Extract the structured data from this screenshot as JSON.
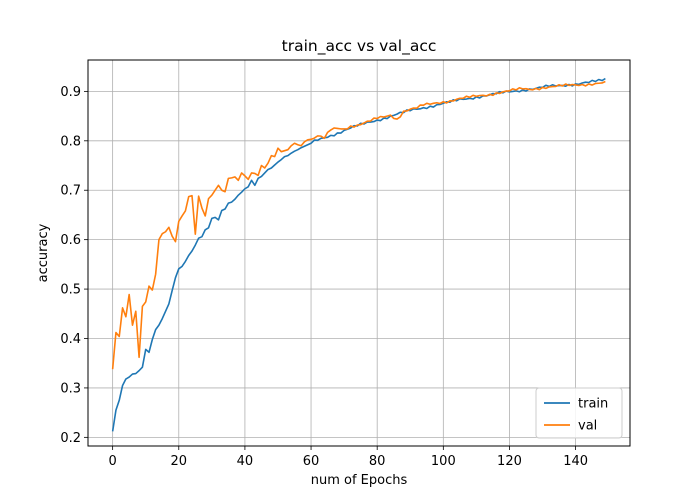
{
  "chart_data": {
    "type": "line",
    "title": "train_acc vs val_acc",
    "xlabel": "num of Epochs",
    "ylabel": "accuracy",
    "xlim": [
      -7.45,
      156.45
    ],
    "ylim": [
      0.1825,
      0.9635
    ],
    "xticks": [
      0,
      20,
      40,
      60,
      80,
      100,
      120,
      140
    ],
    "yticks": [
      0.2,
      0.3,
      0.4,
      0.5,
      0.6,
      0.7,
      0.8,
      0.9
    ],
    "grid": true,
    "legend_position": "lower-right",
    "x_range": [
      0,
      149
    ],
    "series": [
      {
        "name": "train",
        "color": "#1f77b4",
        "keypoints": [
          [
            0,
            0.212
          ],
          [
            1,
            0.255
          ],
          [
            2,
            0.275
          ],
          [
            3,
            0.305
          ],
          [
            4,
            0.318
          ],
          [
            5,
            0.322
          ],
          [
            6,
            0.328
          ],
          [
            7,
            0.329
          ],
          [
            8,
            0.335
          ],
          [
            9,
            0.342
          ],
          [
            10,
            0.378
          ],
          [
            11,
            0.372
          ],
          [
            12,
            0.398
          ],
          [
            13,
            0.418
          ],
          [
            14,
            0.427
          ],
          [
            15,
            0.44
          ],
          [
            16,
            0.455
          ],
          [
            17,
            0.47
          ],
          [
            18,
            0.497
          ],
          [
            19,
            0.523
          ],
          [
            20,
            0.541
          ],
          [
            21,
            0.546
          ],
          [
            22,
            0.556
          ],
          [
            23,
            0.568
          ],
          [
            24,
            0.577
          ],
          [
            25,
            0.589
          ],
          [
            26,
            0.603
          ],
          [
            27,
            0.606
          ],
          [
            28,
            0.62
          ],
          [
            29,
            0.624
          ],
          [
            30,
            0.643
          ],
          [
            31,
            0.645
          ],
          [
            32,
            0.64
          ],
          [
            33,
            0.659
          ],
          [
            34,
            0.662
          ],
          [
            35,
            0.674
          ],
          [
            36,
            0.676
          ],
          [
            37,
            0.682
          ],
          [
            38,
            0.69
          ],
          [
            39,
            0.696
          ],
          [
            40,
            0.703
          ],
          [
            41,
            0.707
          ],
          [
            42,
            0.72
          ],
          [
            43,
            0.71
          ],
          [
            44,
            0.724
          ],
          [
            45,
            0.728
          ],
          [
            46,
            0.735
          ],
          [
            47,
            0.742
          ],
          [
            48,
            0.745
          ],
          [
            49,
            0.751
          ],
          [
            50,
            0.757
          ],
          [
            51,
            0.762
          ],
          [
            52,
            0.768
          ],
          [
            53,
            0.77
          ],
          [
            54,
            0.775
          ],
          [
            55,
            0.779
          ],
          [
            56,
            0.782
          ],
          [
            57,
            0.786
          ],
          [
            58,
            0.789
          ],
          [
            59,
            0.792
          ],
          [
            60,
            0.795
          ],
          [
            62,
            0.801
          ],
          [
            64,
            0.806
          ],
          [
            66,
            0.811
          ],
          [
            68,
            0.816
          ],
          [
            70,
            0.821
          ],
          [
            72,
            0.826
          ],
          [
            74,
            0.83
          ],
          [
            76,
            0.834
          ],
          [
            78,
            0.838
          ],
          [
            80,
            0.842
          ],
          [
            82,
            0.846
          ],
          [
            84,
            0.85
          ],
          [
            86,
            0.854
          ],
          [
            88,
            0.857
          ],
          [
            90,
            0.861
          ],
          [
            92,
            0.864
          ],
          [
            94,
            0.867
          ],
          [
            96,
            0.87
          ],
          [
            98,
            0.873
          ],
          [
            100,
            0.876
          ],
          [
            102,
            0.878
          ],
          [
            104,
            0.881
          ],
          [
            106,
            0.884
          ],
          [
            108,
            0.886
          ],
          [
            110,
            0.889
          ],
          [
            112,
            0.891
          ],
          [
            114,
            0.893
          ],
          [
            116,
            0.895
          ],
          [
            118,
            0.897
          ],
          [
            120,
            0.899
          ],
          [
            122,
            0.901
          ],
          [
            124,
            0.903
          ],
          [
            126,
            0.905
          ],
          [
            128,
            0.906
          ],
          [
            130,
            0.908
          ],
          [
            132,
            0.91
          ],
          [
            134,
            0.911
          ],
          [
            136,
            0.912
          ],
          [
            138,
            0.914
          ],
          [
            140,
            0.915
          ],
          [
            142,
            0.917
          ],
          [
            144,
            0.918
          ],
          [
            146,
            0.92
          ],
          [
            148,
            0.922
          ],
          [
            149,
            0.926
          ]
        ]
      },
      {
        "name": "val",
        "color": "#ff7f0e",
        "keypoints": [
          [
            0,
            0.338
          ],
          [
            1,
            0.412
          ],
          [
            2,
            0.404
          ],
          [
            3,
            0.462
          ],
          [
            4,
            0.444
          ],
          [
            5,
            0.489
          ],
          [
            6,
            0.427
          ],
          [
            7,
            0.455
          ],
          [
            8,
            0.362
          ],
          [
            9,
            0.465
          ],
          [
            10,
            0.474
          ],
          [
            11,
            0.506
          ],
          [
            12,
            0.498
          ],
          [
            13,
            0.53
          ],
          [
            14,
            0.6
          ],
          [
            15,
            0.612
          ],
          [
            16,
            0.616
          ],
          [
            17,
            0.625
          ],
          [
            18,
            0.607
          ],
          [
            19,
            0.596
          ],
          [
            20,
            0.637
          ],
          [
            21,
            0.648
          ],
          [
            22,
            0.658
          ],
          [
            23,
            0.687
          ],
          [
            24,
            0.689
          ],
          [
            25,
            0.611
          ],
          [
            26,
            0.688
          ],
          [
            27,
            0.664
          ],
          [
            28,
            0.648
          ],
          [
            29,
            0.683
          ],
          [
            30,
            0.69
          ],
          [
            31,
            0.7
          ],
          [
            32,
            0.71
          ],
          [
            33,
            0.7
          ],
          [
            34,
            0.697
          ],
          [
            35,
            0.724
          ],
          [
            36,
            0.725
          ],
          [
            37,
            0.727
          ],
          [
            38,
            0.72
          ],
          [
            39,
            0.735
          ],
          [
            40,
            0.729
          ],
          [
            41,
            0.722
          ],
          [
            42,
            0.735
          ],
          [
            43,
            0.734
          ],
          [
            44,
            0.73
          ],
          [
            45,
            0.75
          ],
          [
            46,
            0.745
          ],
          [
            47,
            0.755
          ],
          [
            48,
            0.77
          ],
          [
            49,
            0.768
          ],
          [
            50,
            0.785
          ],
          [
            51,
            0.778
          ],
          [
            52,
            0.78
          ],
          [
            53,
            0.782
          ],
          [
            54,
            0.79
          ],
          [
            55,
            0.795
          ],
          [
            56,
            0.792
          ],
          [
            57,
            0.79
          ],
          [
            58,
            0.798
          ],
          [
            59,
            0.802
          ],
          [
            60,
            0.803
          ],
          [
            62,
            0.81
          ],
          [
            64,
            0.805
          ],
          [
            66,
            0.822
          ],
          [
            68,
            0.825
          ],
          [
            70,
            0.824
          ],
          [
            72,
            0.83
          ],
          [
            74,
            0.832
          ],
          [
            76,
            0.836
          ],
          [
            78,
            0.84
          ],
          [
            80,
            0.845
          ],
          [
            82,
            0.848
          ],
          [
            84,
            0.852
          ],
          [
            86,
            0.844
          ],
          [
            88,
            0.86
          ],
          [
            90,
            0.864
          ],
          [
            92,
            0.866
          ],
          [
            94,
            0.872
          ],
          [
            96,
            0.874
          ],
          [
            98,
            0.877
          ],
          [
            100,
            0.879
          ],
          [
            102,
            0.881
          ],
          [
            104,
            0.884
          ],
          [
            106,
            0.886
          ],
          [
            108,
            0.888
          ],
          [
            110,
            0.89
          ],
          [
            112,
            0.892
          ],
          [
            114,
            0.894
          ],
          [
            116,
            0.897
          ],
          [
            118,
            0.899
          ],
          [
            120,
            0.901
          ],
          [
            122,
            0.903
          ],
          [
            124,
            0.905
          ],
          [
            126,
            0.904
          ],
          [
            128,
            0.906
          ],
          [
            130,
            0.908
          ],
          [
            132,
            0.909
          ],
          [
            134,
            0.91
          ],
          [
            136,
            0.911
          ],
          [
            138,
            0.912
          ],
          [
            140,
            0.913
          ],
          [
            142,
            0.914
          ],
          [
            144,
            0.915
          ],
          [
            146,
            0.916
          ],
          [
            148,
            0.917
          ],
          [
            149,
            0.92
          ]
        ]
      }
    ]
  }
}
